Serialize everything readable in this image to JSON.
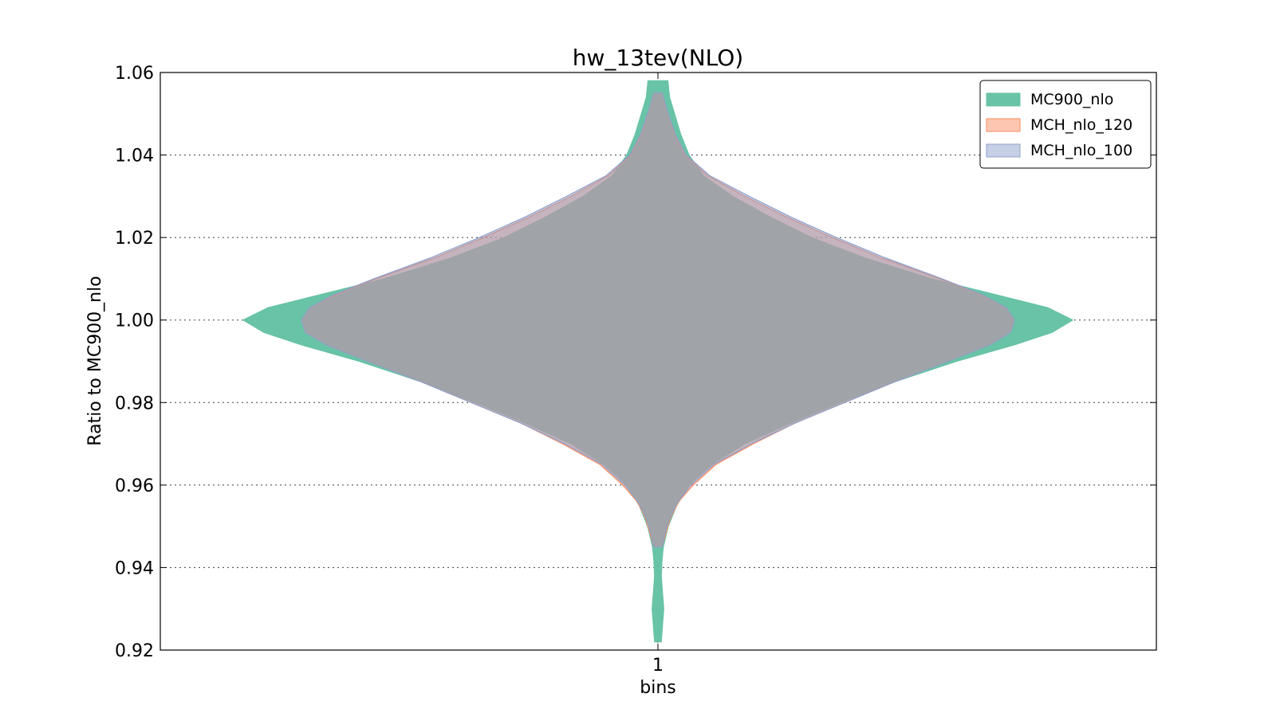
{
  "chart_data": {
    "type": "violin",
    "title": "hw_13tev(NLO)",
    "xlabel": "bins",
    "ylabel": "Ratio to MC900_nlo",
    "categories": [
      "1"
    ],
    "ylim": [
      0.92,
      1.06
    ],
    "yticks": [
      "0.92",
      "0.94",
      "0.96",
      "0.98",
      "1.00",
      "1.02",
      "1.04",
      "1.06"
    ],
    "grid": true,
    "legend_position": "top-right",
    "series": [
      {
        "name": "MC900_nlo",
        "color": "#66c2a5",
        "profile": [
          [
            0.922,
            0.008
          ],
          [
            0.926,
            0.011
          ],
          [
            0.93,
            0.014
          ],
          [
            0.934,
            0.011
          ],
          [
            0.938,
            0.008
          ],
          [
            0.942,
            0.01
          ],
          [
            0.945,
            0.013
          ],
          [
            0.95,
            0.025
          ],
          [
            0.955,
            0.045
          ],
          [
            0.96,
            0.075
          ],
          [
            0.965,
            0.13
          ],
          [
            0.97,
            0.21
          ],
          [
            0.975,
            0.32
          ],
          [
            0.98,
            0.44
          ],
          [
            0.985,
            0.57
          ],
          [
            0.99,
            0.72
          ],
          [
            0.994,
            0.86
          ],
          [
            0.997,
            0.95
          ],
          [
            1.0,
            1.0
          ],
          [
            1.003,
            0.94
          ],
          [
            1.006,
            0.82
          ],
          [
            1.01,
            0.66
          ],
          [
            1.015,
            0.5
          ],
          [
            1.02,
            0.37
          ],
          [
            1.025,
            0.27
          ],
          [
            1.03,
            0.18
          ],
          [
            1.035,
            0.11
          ],
          [
            1.04,
            0.075
          ],
          [
            1.045,
            0.055
          ],
          [
            1.05,
            0.04
          ],
          [
            1.054,
            0.028
          ],
          [
            1.058,
            0.024
          ]
        ]
      },
      {
        "name": "MCH_nlo_120",
        "color": "#fc8d62",
        "profile": [
          [
            0.945,
            0.01
          ],
          [
            0.948,
            0.018
          ],
          [
            0.952,
            0.03
          ],
          [
            0.956,
            0.05
          ],
          [
            0.96,
            0.085
          ],
          [
            0.965,
            0.14
          ],
          [
            0.97,
            0.23
          ],
          [
            0.975,
            0.33
          ],
          [
            0.98,
            0.45
          ],
          [
            0.985,
            0.57
          ],
          [
            0.99,
            0.7
          ],
          [
            0.994,
            0.8
          ],
          [
            0.997,
            0.85
          ],
          [
            1.0,
            0.86
          ],
          [
            1.003,
            0.84
          ],
          [
            1.006,
            0.78
          ],
          [
            1.01,
            0.68
          ],
          [
            1.015,
            0.54
          ],
          [
            1.02,
            0.42
          ],
          [
            1.025,
            0.31
          ],
          [
            1.03,
            0.21
          ],
          [
            1.035,
            0.12
          ],
          [
            1.04,
            0.065
          ],
          [
            1.045,
            0.04
          ],
          [
            1.05,
            0.024
          ],
          [
            1.055,
            0.01
          ]
        ]
      },
      {
        "name": "MCH_nlo_100",
        "color": "#8da0cb",
        "profile": [
          [
            0.945,
            0.01
          ],
          [
            0.948,
            0.016
          ],
          [
            0.952,
            0.028
          ],
          [
            0.956,
            0.048
          ],
          [
            0.96,
            0.08
          ],
          [
            0.965,
            0.135
          ],
          [
            0.97,
            0.225
          ],
          [
            0.975,
            0.33
          ],
          [
            0.98,
            0.45
          ],
          [
            0.985,
            0.57
          ],
          [
            0.99,
            0.7
          ],
          [
            0.994,
            0.8
          ],
          [
            0.997,
            0.85
          ],
          [
            1.0,
            0.86
          ],
          [
            1.003,
            0.84
          ],
          [
            1.006,
            0.785
          ],
          [
            1.01,
            0.685
          ],
          [
            1.015,
            0.55
          ],
          [
            1.02,
            0.43
          ],
          [
            1.025,
            0.32
          ],
          [
            1.03,
            0.22
          ],
          [
            1.035,
            0.125
          ],
          [
            1.04,
            0.068
          ],
          [
            1.045,
            0.042
          ],
          [
            1.05,
            0.025
          ],
          [
            1.055,
            0.01
          ]
        ]
      }
    ]
  }
}
